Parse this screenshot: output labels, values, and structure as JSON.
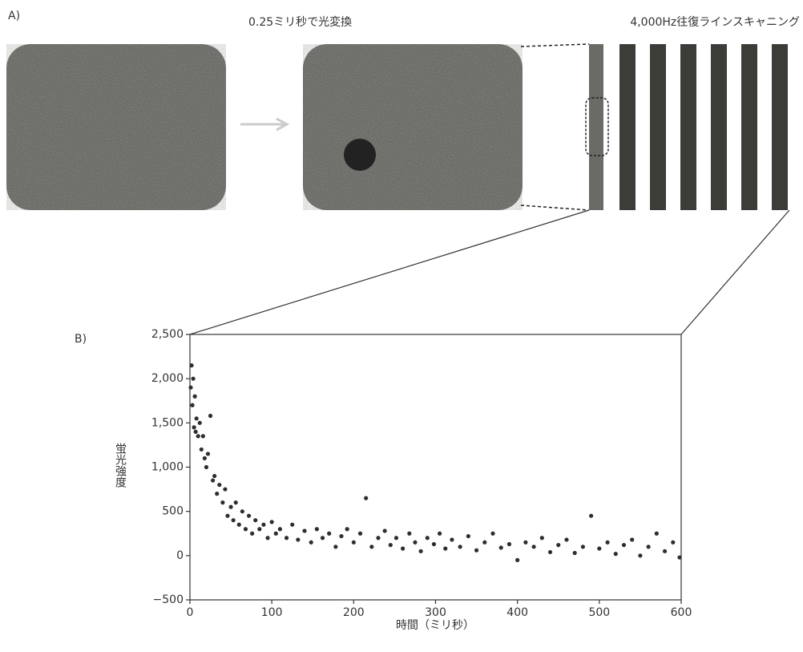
{
  "panel_a": {
    "label": "A)",
    "caption_left": "0.25ミリ秒で光変換",
    "caption_right": "4,000Hz往復ラインスキャニング"
  },
  "chart_data": {
    "type": "scatter",
    "panel_label": "B)",
    "xlabel": "時間（ミリ秒）",
    "ylabel": "蛍光強度",
    "color": "#2e2e2e",
    "x": [
      1,
      2,
      3,
      4,
      5,
      6,
      7,
      8,
      10,
      12,
      14,
      16,
      18,
      20,
      22,
      25,
      28,
      30,
      33,
      36,
      40,
      43,
      46,
      50,
      53,
      56,
      60,
      64,
      68,
      72,
      76,
      80,
      85,
      90,
      95,
      100,
      105,
      110,
      118,
      125,
      132,
      140,
      148,
      155,
      162,
      170,
      178,
      185,
      192,
      200,
      208,
      215,
      222,
      230,
      238,
      245,
      252,
      260,
      268,
      275,
      282,
      290,
      298,
      305,
      312,
      320,
      330,
      340,
      350,
      360,
      370,
      380,
      390,
      400,
      410,
      420,
      430,
      440,
      450,
      460,
      470,
      480,
      490,
      500,
      510,
      520,
      530,
      540,
      550,
      560,
      570,
      580,
      590,
      598
    ],
    "values": [
      1900,
      2150,
      1700,
      2000,
      1450,
      1800,
      1400,
      1550,
      1350,
      1500,
      1200,
      1350,
      1100,
      1000,
      1150,
      1580,
      850,
      900,
      700,
      800,
      600,
      750,
      450,
      550,
      400,
      600,
      350,
      500,
      300,
      450,
      250,
      400,
      300,
      350,
      200,
      380,
      250,
      300,
      200,
      350,
      180,
      280,
      150,
      300,
      200,
      250,
      100,
      220,
      300,
      150,
      250,
      650,
      100,
      200,
      280,
      120,
      200,
      80,
      250,
      150,
      50,
      200,
      130,
      250,
      80,
      180,
      100,
      220,
      60,
      150,
      250,
      90,
      130,
      -50,
      150,
      100,
      200,
      40,
      120,
      180,
      30,
      100,
      450,
      80,
      150,
      20,
      120,
      180,
      0,
      100,
      250,
      50,
      150,
      -20
    ],
    "xlim": [
      0,
      600
    ],
    "ylim": [
      -500,
      2500
    ],
    "xticks": [
      0,
      100,
      200,
      300,
      400,
      500,
      600
    ],
    "yticks": [
      {
        "value": -500,
        "label": "−500"
      },
      0,
      500,
      {
        "value": 1000,
        "label": "1,000"
      },
      {
        "value": 1500,
        "label": "1,500"
      },
      {
        "value": 2000,
        "label": "2,000"
      },
      {
        "value": 2500,
        "label": "2,500"
      }
    ]
  }
}
